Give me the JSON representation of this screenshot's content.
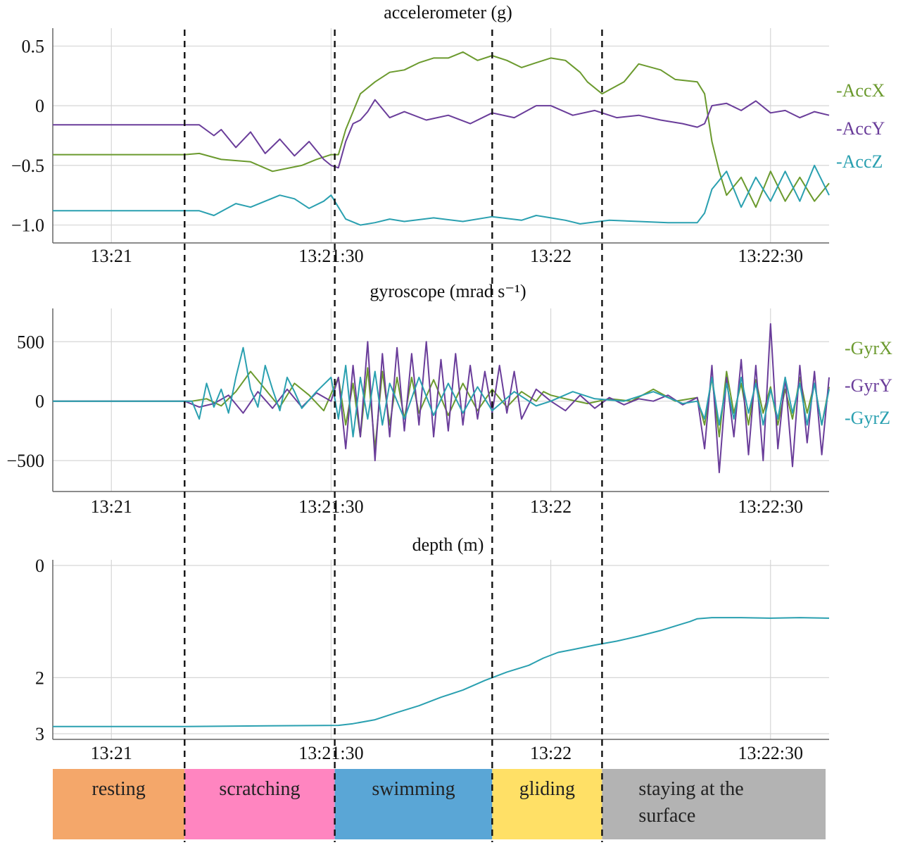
{
  "chart_data": [
    {
      "type": "line",
      "title": "accelerometer (g)",
      "xlabel": "",
      "ylabel": "",
      "ylim": [
        -1.15,
        0.65
      ],
      "yticks": [
        0.5,
        0,
        -0.5,
        -1.0
      ],
      "ytick_labels": [
        "0.5",
        "0",
        "−0.5",
        "−1.0"
      ],
      "xtick_labels": [
        "13:21",
        "13:21:30",
        "13:22",
        "13:22:30"
      ],
      "xticks_s": [
        0,
        30,
        60,
        90
      ],
      "xlim_s": [
        -8,
        98
      ],
      "grid": true,
      "legend_position": "right",
      "legend": [
        "-AccX",
        "-AccY",
        "-AccZ"
      ],
      "series": [
        {
          "name": "-AccX",
          "color": "#6b9a2e",
          "x": [
            -8,
            10,
            12,
            15,
            19,
            22,
            26,
            28,
            30,
            31,
            32,
            33,
            34,
            36,
            38,
            40,
            42,
            44,
            46,
            48,
            50,
            52,
            54,
            56,
            58,
            60,
            62,
            64,
            65,
            67,
            70,
            72,
            75,
            77,
            80,
            81,
            82,
            83,
            84,
            86,
            88,
            90,
            92,
            94,
            96,
            98
          ],
          "y": [
            -0.41,
            -0.41,
            -0.4,
            -0.45,
            -0.47,
            -0.55,
            -0.5,
            -0.45,
            -0.41,
            -0.41,
            -0.2,
            -0.05,
            0.1,
            0.2,
            0.28,
            0.3,
            0.36,
            0.4,
            0.4,
            0.45,
            0.38,
            0.42,
            0.38,
            0.32,
            0.36,
            0.4,
            0.38,
            0.28,
            0.2,
            0.1,
            0.2,
            0.35,
            0.3,
            0.22,
            0.2,
            0.1,
            -0.3,
            -0.55,
            -0.75,
            -0.6,
            -0.85,
            -0.55,
            -0.8,
            -0.6,
            -0.8,
            -0.65
          ]
        },
        {
          "name": "-AccY",
          "color": "#6a3d9a",
          "x": [
            -8,
            10,
            12,
            14,
            15,
            17,
            19,
            21,
            23,
            25,
            27,
            29,
            30,
            31,
            32,
            33,
            34,
            35,
            36,
            38,
            40,
            43,
            46,
            49,
            52,
            55,
            58,
            60,
            63,
            66,
            69,
            72,
            75,
            78,
            80,
            81,
            82,
            84,
            86,
            88,
            90,
            92,
            94,
            96,
            98
          ],
          "y": [
            -0.16,
            -0.16,
            -0.16,
            -0.25,
            -0.2,
            -0.35,
            -0.22,
            -0.4,
            -0.28,
            -0.42,
            -0.3,
            -0.45,
            -0.5,
            -0.52,
            -0.3,
            -0.15,
            -0.12,
            -0.05,
            0.05,
            -0.1,
            -0.05,
            -0.12,
            -0.08,
            -0.15,
            -0.06,
            -0.1,
            0.0,
            0.0,
            -0.08,
            -0.04,
            -0.1,
            -0.08,
            -0.12,
            -0.15,
            -0.18,
            -0.15,
            0.0,
            0.02,
            -0.04,
            0.04,
            -0.06,
            -0.04,
            -0.1,
            -0.05,
            -0.08
          ]
        },
        {
          "name": "-AccZ",
          "color": "#2aa0b0",
          "x": [
            -8,
            10,
            12,
            14,
            17,
            19,
            21,
            23,
            25,
            27,
            29,
            30,
            31,
            32,
            34,
            36,
            38,
            40,
            44,
            48,
            52,
            56,
            58,
            60,
            62,
            64,
            68,
            72,
            76,
            80,
            81,
            82,
            84,
            86,
            88,
            90,
            92,
            94,
            96,
            98
          ],
          "y": [
            -0.88,
            -0.88,
            -0.88,
            -0.92,
            -0.82,
            -0.85,
            -0.8,
            -0.75,
            -0.78,
            -0.86,
            -0.8,
            -0.75,
            -0.85,
            -0.95,
            -1.0,
            -0.98,
            -0.95,
            -0.97,
            -0.94,
            -0.97,
            -0.93,
            -0.96,
            -0.92,
            -0.94,
            -0.96,
            -0.99,
            -0.96,
            -0.97,
            -0.98,
            -0.98,
            -0.9,
            -0.7,
            -0.55,
            -0.85,
            -0.6,
            -0.8,
            -0.55,
            -0.8,
            -0.5,
            -0.75
          ]
        }
      ]
    },
    {
      "type": "line",
      "title": "gyroscope (mrad s⁻¹)",
      "xlabel": "",
      "ylabel": "",
      "ylim": [
        -760,
        780
      ],
      "yticks": [
        500,
        0,
        -500
      ],
      "ytick_labels": [
        "500",
        "0",
        "−500"
      ],
      "xtick_labels": [
        "13:21",
        "13:21:30",
        "13:22",
        "13:22:30"
      ],
      "xticks_s": [
        0,
        30,
        60,
        90
      ],
      "xlim_s": [
        -8,
        98
      ],
      "grid": true,
      "legend_position": "right",
      "legend": [
        "-GyrX",
        "-GyrY",
        "-GyrZ"
      ],
      "series": [
        {
          "name": "-GyrX",
          "color": "#6b9a2e",
          "x": [
            -8,
            10,
            11,
            13,
            15,
            17,
            19,
            21,
            23,
            25,
            27,
            29,
            31,
            32,
            33,
            34,
            35,
            36,
            37,
            38,
            39,
            40,
            41,
            42,
            44,
            46,
            48,
            50,
            52,
            54,
            56,
            58,
            59,
            60,
            62,
            65,
            68,
            71,
            74,
            77,
            80,
            81,
            82,
            83,
            84,
            85,
            86,
            87,
            88,
            89,
            90,
            91,
            92,
            93,
            94,
            95,
            96,
            97,
            98
          ],
          "y": [
            0,
            0,
            0,
            20,
            -40,
            80,
            250,
            100,
            -50,
            150,
            50,
            -80,
            200,
            -200,
            150,
            -300,
            280,
            -400,
            250,
            -200,
            200,
            -150,
            200,
            -100,
            180,
            -120,
            150,
            -80,
            100,
            -50,
            80,
            0,
            80,
            50,
            20,
            -20,
            20,
            0,
            100,
            0,
            30,
            -200,
            200,
            -300,
            250,
            -100,
            150,
            -200,
            180,
            -100,
            120,
            -200,
            100,
            -150,
            200,
            -100,
            150,
            -200,
            120
          ]
        },
        {
          "name": "-GyrY",
          "color": "#6a3d9a",
          "x": [
            -8,
            10,
            12,
            14,
            16,
            18,
            20,
            22,
            24,
            26,
            28,
            30,
            31,
            32,
            33,
            34,
            35,
            36,
            37,
            38,
            39,
            40,
            41,
            42,
            43,
            44,
            45,
            46,
            47,
            48,
            49,
            50,
            51,
            52,
            53,
            54,
            55,
            56,
            58,
            60,
            62,
            64,
            66,
            68,
            70,
            72,
            74,
            76,
            78,
            80,
            81,
            82,
            83,
            84,
            85,
            86,
            87,
            88,
            89,
            90,
            91,
            92,
            93,
            94,
            95,
            96,
            97,
            98
          ],
          "y": [
            0,
            0,
            -50,
            -20,
            50,
            -100,
            80,
            -60,
            100,
            -50,
            70,
            0,
            200,
            -400,
            300,
            -300,
            500,
            -500,
            400,
            -300,
            450,
            -250,
            400,
            -200,
            500,
            -300,
            350,
            -250,
            400,
            -200,
            300,
            -150,
            250,
            -100,
            300,
            -100,
            250,
            -150,
            100,
            0,
            -80,
            50,
            -60,
            30,
            -30,
            20,
            0,
            50,
            -30,
            30,
            -400,
            300,
            -600,
            200,
            -300,
            350,
            -450,
            300,
            -500,
            650,
            -400,
            200,
            -550,
            300,
            -350,
            250,
            -450,
            200
          ]
        },
        {
          "name": "-GyrZ",
          "color": "#2aa0b0",
          "x": [
            -8,
            10,
            11,
            12,
            13,
            14,
            15,
            16,
            17,
            18,
            19,
            20,
            21,
            22,
            23,
            24,
            25,
            26,
            28,
            30,
            31,
            32,
            33,
            34,
            35,
            36,
            37,
            38,
            40,
            42,
            44,
            46,
            48,
            50,
            52,
            55,
            58,
            60,
            63,
            66,
            70,
            74,
            78,
            80,
            81,
            82,
            83,
            84,
            85,
            86,
            87,
            88,
            89,
            90,
            91,
            92,
            93,
            94,
            95,
            96,
            97,
            98
          ],
          "y": [
            0,
            0,
            0,
            -150,
            150,
            -50,
            100,
            -100,
            200,
            450,
            100,
            -50,
            300,
            100,
            -80,
            200,
            80,
            -60,
            80,
            200,
            -150,
            300,
            -300,
            200,
            -150,
            250,
            -200,
            150,
            -150,
            200,
            -120,
            150,
            -100,
            120,
            -80,
            80,
            -40,
            0,
            80,
            20,
            0,
            80,
            -20,
            0,
            -150,
            200,
            -200,
            150,
            -150,
            200,
            -100,
            150,
            -200,
            100,
            -150,
            200,
            -100,
            150,
            -200,
            150,
            -200,
            100
          ]
        }
      ]
    },
    {
      "type": "line",
      "title": "depth (m)",
      "xlabel": "",
      "ylabel": "",
      "ylim": [
        3.1,
        -0.1
      ],
      "yticks": [
        0,
        2,
        3
      ],
      "ytick_labels": [
        "0",
        "2",
        "3"
      ],
      "xtick_labels": [
        "13:21",
        "13:21:30",
        "13:22",
        "13:22:30"
      ],
      "xticks_s": [
        0,
        30,
        60,
        90
      ],
      "xlim_s": [
        -8,
        98
      ],
      "grid": true,
      "series": [
        {
          "name": "",
          "color": "#2aa0b0",
          "x": [
            -8,
            10,
            20,
            31,
            33,
            36,
            39,
            42,
            45,
            48,
            51,
            54,
            57,
            59,
            61,
            63,
            66,
            69,
            72,
            75,
            78,
            79,
            80,
            82,
            86,
            90,
            94,
            98
          ],
          "y": [
            2.87,
            2.87,
            2.86,
            2.85,
            2.82,
            2.75,
            2.62,
            2.5,
            2.35,
            2.22,
            2.05,
            1.9,
            1.78,
            1.65,
            1.55,
            1.5,
            1.42,
            1.35,
            1.26,
            1.16,
            1.04,
            1.0,
            0.95,
            0.93,
            0.93,
            0.94,
            0.93,
            0.94
          ]
        }
      ]
    }
  ],
  "boundaries_s": [
    10,
    30.5,
    52,
    67
  ],
  "phases": [
    {
      "label": "resting",
      "color": "#f4a76a",
      "start_s": -8,
      "end_s": 10
    },
    {
      "label": "scratching",
      "color": "#ff85c0",
      "start_s": 10,
      "end_s": 30.5
    },
    {
      "label": "swimming",
      "color": "#5aa6d6",
      "start_s": 30.5,
      "end_s": 52
    },
    {
      "label": "gliding",
      "color": "#ffe066",
      "start_s": 52,
      "end_s": 67
    },
    {
      "label": "staying at the\nsurface",
      "color": "#b3b3b3",
      "start_s": 67,
      "end_s": 98
    }
  ]
}
